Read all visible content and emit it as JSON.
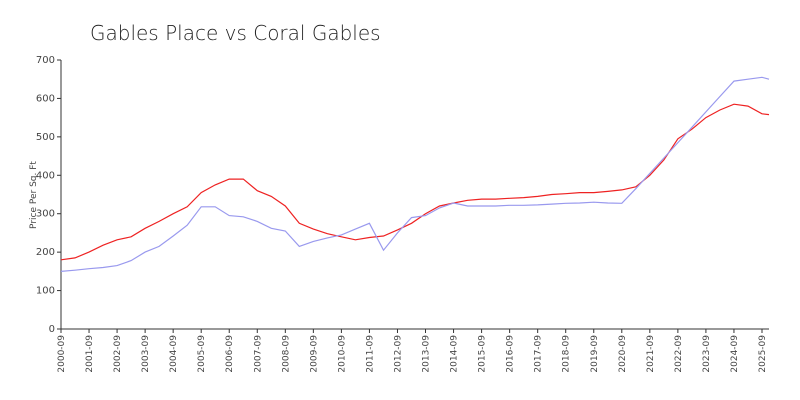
{
  "chart_data": {
    "type": "line",
    "title": "Gables Place vs Coral Gables",
    "ylabel": "Price Per Sq. Ft",
    "x": [
      "2000-09",
      "2001-03",
      "2001-09",
      "2002-03",
      "2002-09",
      "2003-03",
      "2003-09",
      "2004-03",
      "2004-09",
      "2005-03",
      "2005-09",
      "2006-03",
      "2006-09",
      "2007-03",
      "2007-09",
      "2008-03",
      "2008-09",
      "2009-03",
      "2009-09",
      "2010-03",
      "2010-09",
      "2011-03",
      "2011-09",
      "2012-03",
      "2012-09",
      "2013-03",
      "2013-09",
      "2014-03",
      "2014-09",
      "2015-03",
      "2015-09",
      "2016-03",
      "2016-09",
      "2017-03",
      "2017-09",
      "2018-03",
      "2018-09",
      "2019-03",
      "2019-09",
      "2020-03",
      "2020-09",
      "2021-03",
      "2021-09",
      "2022-03",
      "2022-09",
      "2023-03",
      "2023-09",
      "2024-03",
      "2024-09",
      "2025-03",
      "2025-09",
      "2025-12"
    ],
    "series": [
      {
        "color": "#ee2222",
        "values": [
          180,
          185,
          200,
          218,
          232,
          240,
          262,
          280,
          300,
          318,
          355,
          375,
          390,
          390,
          360,
          345,
          320,
          275,
          260,
          248,
          240,
          232,
          238,
          242,
          258,
          275,
          300,
          320,
          328,
          335,
          338,
          338,
          340,
          342,
          345,
          350,
          352,
          355,
          355,
          358,
          362,
          370,
          400,
          440,
          495,
          520,
          550,
          570,
          585,
          580,
          560,
          558
        ]
      },
      {
        "color": "#9999ee",
        "values": [
          150,
          153,
          157,
          160,
          165,
          178,
          200,
          215,
          242,
          270,
          318,
          318,
          295,
          292,
          280,
          262,
          255,
          215,
          228,
          237,
          245,
          260,
          275,
          205,
          250,
          290,
          295,
          315,
          328,
          320,
          320,
          320,
          322,
          322,
          323,
          325,
          327,
          328,
          330,
          328,
          327,
          365,
          405,
          445,
          485,
          525,
          565,
          605,
          645,
          650,
          655,
          650
        ]
      }
    ],
    "xlim": [
      "2000-09",
      "2025-12"
    ],
    "xticks": [
      "2000-09",
      "2001-09",
      "2002-09",
      "2003-09",
      "2004-09",
      "2005-09",
      "2006-09",
      "2007-09",
      "2008-09",
      "2009-09",
      "2010-09",
      "2011-09",
      "2012-09",
      "2013-09",
      "2014-09",
      "2015-09",
      "2016-09",
      "2017-09",
      "2018-09",
      "2019-09",
      "2020-09",
      "2021-09",
      "2022-09",
      "2023-09",
      "2024-09",
      "2025-09"
    ],
    "ylim": [
      0,
      700
    ],
    "yticks": [
      0,
      100,
      200,
      300,
      400,
      500,
      600,
      700
    ]
  }
}
